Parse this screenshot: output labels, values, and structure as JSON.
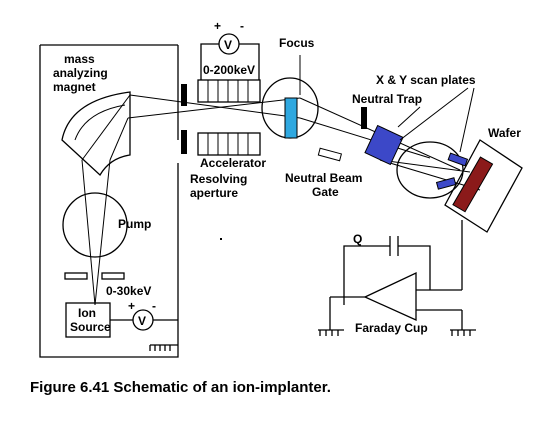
{
  "labels": {
    "mass_analyzing_magnet": [
      "mass",
      "analyzing",
      "magnet"
    ],
    "voltage_200": "0-200keV",
    "focus": "Focus",
    "neutral_trap": "Neutral Trap",
    "xy_scan": "X & Y scan plates",
    "wafer": "Wafer",
    "accelerator": "Accelerator",
    "resolving_aperture": [
      "Resolving",
      "aperture"
    ],
    "neutral_beam_gate": [
      "Neutral Beam",
      "Gate"
    ],
    "pump": "Pump",
    "q": "Q",
    "voltage_30": "0-30keV",
    "ion_source": [
      "Ion",
      "Source"
    ],
    "faraday_cup": "Faraday Cup",
    "voltmeter": "V",
    "plus": "+",
    "minus": "-"
  },
  "caption": "Figure 6.41 Schematic of an ion-implanter.",
  "colors": {
    "focus_lens": "#2fa8e0",
    "neutral_trap": "#3c48c8",
    "scan_plates": "#3c48c8",
    "wafer": "#8b1a1a",
    "ink": "#000000"
  }
}
